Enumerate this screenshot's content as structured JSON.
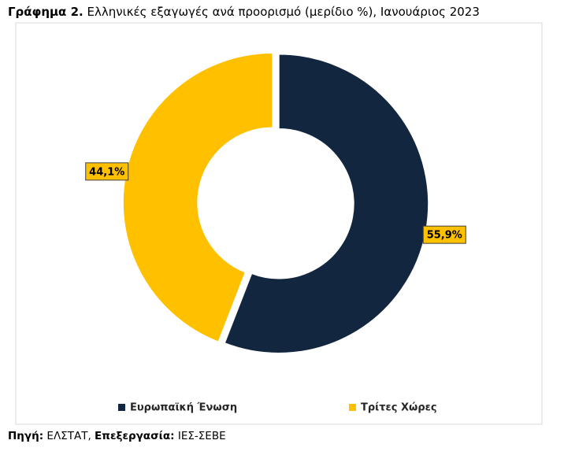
{
  "title": {
    "label": "Γράφημα 2.",
    "text": "Ελληνικές εξαγωγές ανά προορισμό (μερίδιο %), Ιανουάριος 2023"
  },
  "chart_data": {
    "type": "donut",
    "categories": [
      "Ευρωπαϊκή Ένωση",
      "Τρίτες Χώρες"
    ],
    "values": [
      55.9,
      44.1
    ],
    "value_labels": [
      "55,9%",
      "44,1%"
    ],
    "colors": [
      "#13263f",
      "#ffc000"
    ],
    "legend": "bottom"
  },
  "source": {
    "label1": "Πηγή:",
    "text1": "ΕΛΣΤΑΤ,",
    "label2": "Επεξεργασία:",
    "text2": "ΙΕΣ-ΣΕΒΕ"
  }
}
